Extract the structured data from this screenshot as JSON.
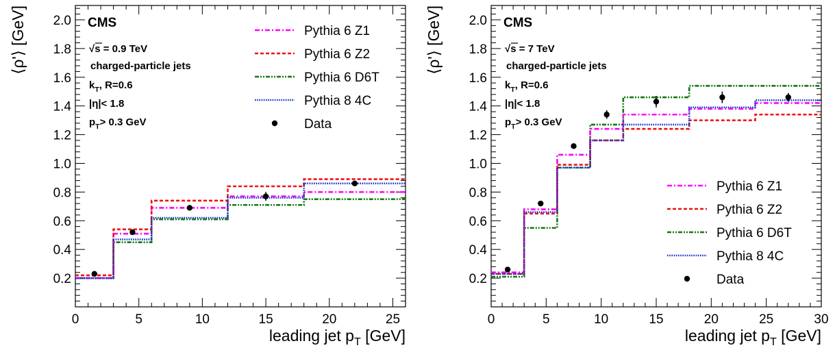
{
  "colors": {
    "z1": "#ff00ff",
    "z2": "#ee1111",
    "d6t": "#117711",
    "p8": "#1133cc",
    "data": "#000000"
  },
  "chart_data": [
    {
      "type": "line",
      "experiment_label": "CMS",
      "annotations": [
        "√s = 0.9 TeV",
        "charged-particle jets",
        "kT, R=0.6",
        "|η|< 1.8",
        "pT> 0.3 GeV"
      ],
      "xlabel": "leading jet pT [GeV]",
      "ylabel": "⟨ρ'⟩ [GeV]",
      "xlim": [
        0,
        26
      ],
      "ylim": [
        0,
        2.1
      ],
      "xticks": [
        0,
        5,
        10,
        15,
        20,
        25
      ],
      "yticks": [
        0.2,
        0.4,
        0.6,
        0.8,
        1.0,
        1.2,
        1.4,
        1.6,
        1.8,
        2.0
      ],
      "legend_position": "top-right",
      "bin_edges": [
        0,
        3,
        6,
        12,
        18,
        26
      ],
      "series": [
        {
          "name": "Pythia 6 Z1",
          "style": "dashdot",
          "color_key": "z1",
          "values": [
            0.2,
            0.51,
            0.69,
            0.77,
            0.8
          ]
        },
        {
          "name": "Pythia 6 Z2",
          "style": "dashed",
          "color_key": "z2",
          "values": [
            0.22,
            0.54,
            0.74,
            0.84,
            0.89
          ]
        },
        {
          "name": "Pythia 6 D6T",
          "style": "dashdotdot",
          "color_key": "d6t",
          "values": [
            0.2,
            0.45,
            0.61,
            0.71,
            0.75
          ]
        },
        {
          "name": "Pythia 8 4C",
          "style": "dotted",
          "color_key": "p8",
          "values": [
            0.2,
            0.47,
            0.62,
            0.76,
            0.86
          ]
        }
      ],
      "data_series": {
        "name": "Data",
        "x": [
          1.5,
          4.5,
          9.0,
          15.0,
          22.0
        ],
        "y": [
          0.23,
          0.52,
          0.69,
          0.77,
          0.86
        ],
        "err": [
          0.01,
          0.01,
          0.01,
          0.03,
          0.01
        ]
      }
    },
    {
      "type": "line",
      "experiment_label": "CMS",
      "annotations": [
        "√s = 7 TeV",
        "charged-particle jets",
        "kT, R=0.6",
        "|η|< 1.8",
        "pT> 0.3 GeV"
      ],
      "xlabel": "leading jet pT [GeV]",
      "ylabel": "⟨ρ'⟩ [GeV]",
      "xlim": [
        0,
        30
      ],
      "ylim": [
        0,
        2.1
      ],
      "xticks": [
        0,
        5,
        10,
        15,
        20,
        25,
        30
      ],
      "yticks": [
        0.2,
        0.4,
        0.6,
        0.8,
        1.0,
        1.2,
        1.4,
        1.6,
        1.8,
        2.0
      ],
      "legend_position": "bottom-right",
      "bin_edges": [
        0,
        3,
        6,
        9,
        12,
        18,
        24,
        30
      ],
      "series": [
        {
          "name": "Pythia 6 Z1",
          "style": "dashdot",
          "color_key": "z1",
          "values": [
            0.24,
            0.68,
            1.06,
            1.24,
            1.34,
            1.38,
            1.42
          ]
        },
        {
          "name": "Pythia 6 Z2",
          "style": "dashed",
          "color_key": "z2",
          "values": [
            0.23,
            0.65,
            0.99,
            1.16,
            1.24,
            1.3,
            1.34
          ]
        },
        {
          "name": "Pythia 6 D6T",
          "style": "dashdotdot",
          "color_key": "d6t",
          "values": [
            0.21,
            0.55,
            0.97,
            1.27,
            1.46,
            1.54,
            1.54
          ]
        },
        {
          "name": "Pythia 8 4C",
          "style": "dotted",
          "color_key": "p8",
          "values": [
            0.23,
            0.66,
            0.97,
            1.16,
            1.27,
            1.39,
            1.44
          ]
        }
      ],
      "data_series": {
        "name": "Data",
        "x": [
          1.5,
          4.5,
          7.5,
          10.5,
          15.0,
          21.0,
          27.0
        ],
        "y": [
          0.26,
          0.72,
          1.12,
          1.34,
          1.43,
          1.46,
          1.46
        ],
        "err": [
          0.01,
          0.01,
          0.01,
          0.03,
          0.04,
          0.04,
          0.03
        ]
      }
    }
  ]
}
